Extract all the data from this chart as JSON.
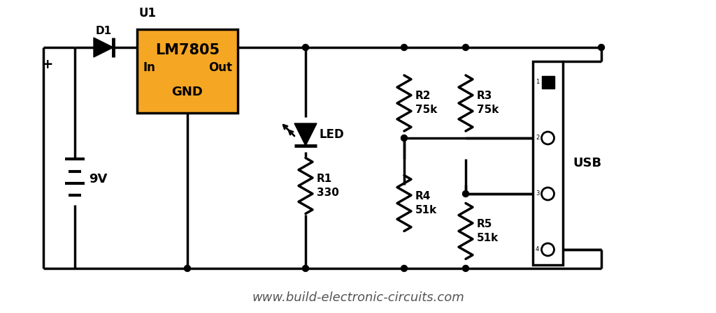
{
  "background_color": "#ffffff",
  "line_color": "#000000",
  "line_width": 2.5,
  "orange_fill": "#f5a623",
  "watermark": "www.build-electronic-circuits.com",
  "label_U1": "U1",
  "label_LM7805": "LM7805",
  "label_In": "In",
  "label_Out": "Out",
  "label_GND": "GND",
  "label_D1": "D1",
  "label_9V": "9V",
  "label_LED": "LED",
  "label_R1": "R1",
  "label_R1_val": "330",
  "label_R2": "R2",
  "label_R2_val": "75k",
  "label_R3": "R3",
  "label_R3_val": "75k",
  "label_R4": "R4",
  "label_R4_val": "51k",
  "label_R5": "R5",
  "label_R5_val": "51k",
  "label_USB": "USB"
}
